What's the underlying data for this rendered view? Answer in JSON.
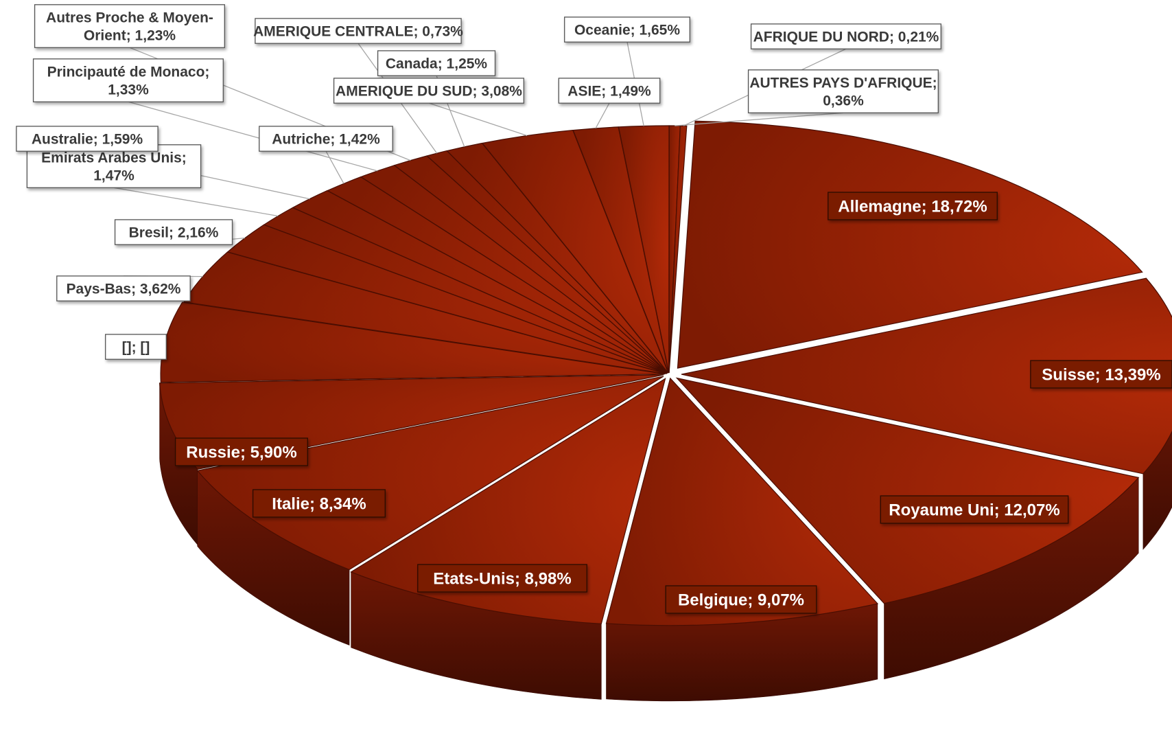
{
  "chart_data": {
    "type": "pie",
    "style": "3d-exploded",
    "title": "",
    "label_format": "category; percent",
    "colors": {
      "slice_top": "#8e1e02",
      "slice_side": "#5a1204",
      "label_dark_bg": "#7a1a06",
      "label_light_bg": "#ffffff",
      "leader_line": "#a6a6a6"
    },
    "slices": [
      {
        "label": "Allemagne; 18,72%",
        "name": "Allemagne",
        "value": 18.72,
        "style": "dark"
      },
      {
        "label": "Suisse; 13,39%",
        "name": "Suisse",
        "value": 13.39,
        "style": "dark"
      },
      {
        "label": "Royaume Uni; 12,07%",
        "name": "Royaume Uni",
        "value": 12.07,
        "style": "dark"
      },
      {
        "label": "Belgique; 9,07%",
        "name": "Belgique",
        "value": 9.07,
        "style": "dark"
      },
      {
        "label": "Etats-Unis; 8,98%",
        "name": "Etats-Unis",
        "value": 8.98,
        "style": "dark"
      },
      {
        "label": "Italie; 8,34%",
        "name": "Italie",
        "value": 8.34,
        "style": "dark"
      },
      {
        "label": "Russie; 5,90%",
        "name": "Russie",
        "value": 5.9,
        "style": "dark"
      },
      {
        "label": "[]; []",
        "name": "[]",
        "value": 5.4,
        "style": "light"
      },
      {
        "label": "Pays-Bas; 3,62%",
        "name": "Pays-Bas",
        "value": 3.62,
        "style": "light"
      },
      {
        "label": "Bresil; 2,16%",
        "name": "Bresil",
        "value": 2.16,
        "style": "light"
      },
      {
        "label": "Emirats Arabes Unis; 1,47%",
        "name": "Emirats Arabes Unis",
        "value": 1.47,
        "style": "light"
      },
      {
        "label": "Australie; 1,59%",
        "name": "Australie",
        "value": 1.59,
        "style": "light"
      },
      {
        "label": "Autriche; 1,42%",
        "name": "Autriche",
        "value": 1.42,
        "style": "light"
      },
      {
        "label": "Principauté de Monaco; 1,33%",
        "name": "Principauté de Monaco",
        "value": 1.33,
        "style": "light"
      },
      {
        "label": "Autres Proche & Moyen-Orient; 1,23%",
        "name": "Autres Proche & Moyen-Orient",
        "value": 1.23,
        "style": "light"
      },
      {
        "label": "AMERIQUE CENTRALE; 0,73%",
        "name": "AMERIQUE CENTRALE",
        "value": 0.73,
        "style": "light"
      },
      {
        "label": "Canada; 1,25%",
        "name": "Canada",
        "value": 1.25,
        "style": "light"
      },
      {
        "label": "AMERIQUE DU SUD; 3,08%",
        "name": "AMERIQUE DU SUD",
        "value": 3.08,
        "style": "light"
      },
      {
        "label": "ASIE; 1,49%",
        "name": "ASIE",
        "value": 1.49,
        "style": "light"
      },
      {
        "label": "Oceanie; 1,65%",
        "name": "Oceanie",
        "value": 1.65,
        "style": "light"
      },
      {
        "label": "AUTRES PAYS D'AFRIQUE; 0,36%",
        "name": "AUTRES PAYS D'AFRIQUE",
        "value": 0.36,
        "style": "light"
      },
      {
        "label": "AFRIQUE DU NORD; 0,21%",
        "name": "AFRIQUE DU NORD",
        "value": 0.21,
        "style": "light"
      }
    ]
  }
}
